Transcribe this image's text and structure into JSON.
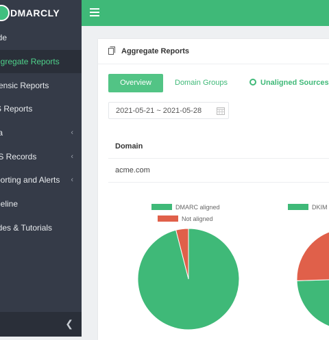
{
  "brand": {
    "name": "DMARCLY"
  },
  "sidebar": {
    "items": [
      {
        "label": "Guide",
        "shown": "ide",
        "chev": false,
        "active": false
      },
      {
        "label": "Aggregate Reports",
        "shown": "ggregate Reports",
        "chev": false,
        "active": true
      },
      {
        "label": "Forensic Reports",
        "shown": "rensic Reports",
        "chev": false,
        "active": false
      },
      {
        "label": "TLS Reports",
        "shown": "S Reports",
        "chev": false,
        "active": false
      },
      {
        "label": "Data",
        "shown": "ta",
        "chev": true,
        "active": false
      },
      {
        "label": "DNS Records",
        "shown": "IS Records",
        "chev": true,
        "active": false
      },
      {
        "label": "Reporting and Alerts",
        "shown": "porting and Alerts",
        "chev": true,
        "active": false
      },
      {
        "label": "Timeline",
        "shown": "neline",
        "chev": false,
        "active": false
      },
      {
        "label": "Guides & Tutorials",
        "shown": "ides & Tutorials",
        "chev": false,
        "active": false
      }
    ],
    "collapse_icon": "chevron-left-icon"
  },
  "card": {
    "title": "Aggregate Reports",
    "tabs": {
      "overview": "Overview",
      "domain_groups": "Domain Groups",
      "unaligned": "Unaligned Sources"
    },
    "date_range": "2021-05-21 ~ 2021-05-28",
    "table": {
      "header": "Domain",
      "rows": [
        "acme.com"
      ]
    }
  },
  "colors": {
    "green": "#3fb978",
    "red": "#e0604a"
  },
  "chart_data": [
    {
      "type": "pie",
      "legend": [
        "DMARC aligned",
        "Not aligned"
      ],
      "values": [
        96,
        4
      ],
      "colors": [
        "#3fb978",
        "#e0604a"
      ]
    },
    {
      "type": "pie",
      "legend": [
        "DKIM"
      ],
      "values": [
        62,
        38
      ],
      "colors": [
        "#3fb978",
        "#e0604a"
      ]
    }
  ]
}
